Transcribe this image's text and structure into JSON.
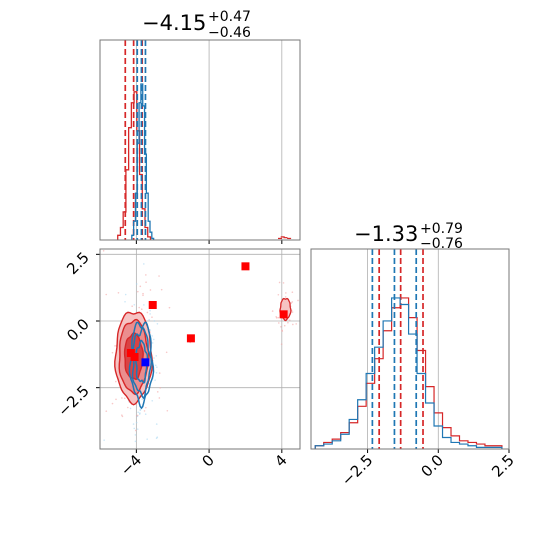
{
  "colors": {
    "red": "#d62728",
    "blue": "#1f77b4",
    "marker_red": "#ff0000",
    "marker_blue": "#0000ff",
    "grid": "#b0b0b0"
  },
  "titles": {
    "p1": {
      "main": "−4.15",
      "sup": "+0.47",
      "sub": "−0.46"
    },
    "p2": {
      "main": "−1.33",
      "sup": "+0.79",
      "sub": "−0.76"
    }
  },
  "chart_data": [
    {
      "type": "histogram",
      "panel": "marginal-param-1",
      "xlim": [
        -6,
        5
      ],
      "grid": true,
      "series": [
        {
          "color": "#d62728",
          "bins": [
            -4.95,
            -4.8,
            -4.65,
            -4.5,
            -4.35,
            -4.2,
            -4.05,
            -3.9,
            -3.75,
            -3.6,
            -3.45,
            -3.3
          ],
          "counts": [
            0.03,
            0.08,
            0.18,
            0.45,
            0.72,
            0.88,
            0.95,
            0.7,
            0.42,
            0.2,
            0.08,
            0.02
          ],
          "quantiles": [
            -4.61,
            -4.15,
            -3.68
          ]
        },
        {
          "color": "#1f77b4",
          "bins": [
            -4.2,
            -4.1,
            -4.0,
            -3.9,
            -3.8,
            -3.7,
            -3.6,
            -3.5,
            -3.4,
            -3.3,
            -3.2,
            -3.1
          ],
          "counts": [
            0.03,
            0.12,
            0.3,
            0.62,
            0.88,
            1.0,
            0.86,
            0.55,
            0.3,
            0.12,
            0.05,
            0.01
          ],
          "quantiles": [
            -3.95,
            -3.72,
            -3.5
          ]
        }
      ],
      "outliers": {
        "color": "#d62728",
        "x": [
          3.9,
          4.05,
          4.2,
          4.4
        ],
        "counts": [
          0.01,
          0.02,
          0.015,
          0.01
        ]
      }
    },
    {
      "type": "histogram",
      "panel": "marginal-param-2",
      "xlim": [
        -4.5,
        2.5
      ],
      "xticks": [
        "−2.5",
        "0.0",
        "2.5"
      ],
      "grid": true,
      "series": [
        {
          "color": "#d62728",
          "bins": [
            -4.2,
            -3.9,
            -3.6,
            -3.3,
            -3.0,
            -2.7,
            -2.4,
            -2.1,
            -1.8,
            -1.5,
            -1.2,
            -0.9,
            -0.6,
            -0.3,
            0.0,
            0.3,
            0.6,
            0.9,
            1.2,
            1.5,
            1.8,
            2.1
          ],
          "counts": [
            0.02,
            0.04,
            0.06,
            0.1,
            0.16,
            0.26,
            0.4,
            0.55,
            0.72,
            0.86,
            0.92,
            0.8,
            0.6,
            0.38,
            0.22,
            0.13,
            0.08,
            0.05,
            0.04,
            0.03,
            0.02,
            0.02
          ],
          "quantiles": [
            -2.09,
            -1.33,
            -0.54
          ]
        },
        {
          "color": "#1f77b4",
          "bins": [
            -4.2,
            -3.9,
            -3.6,
            -3.3,
            -3.0,
            -2.7,
            -2.4,
            -2.1,
            -1.8,
            -1.5,
            -1.2,
            -0.9,
            -0.6,
            -0.3,
            0.0,
            0.3,
            0.6,
            0.9,
            1.2,
            1.5,
            1.8,
            2.1
          ],
          "counts": [
            0.02,
            0.03,
            0.05,
            0.09,
            0.18,
            0.3,
            0.46,
            0.62,
            0.78,
            0.92,
            0.88,
            0.7,
            0.46,
            0.28,
            0.14,
            0.07,
            0.04,
            0.03,
            0.02,
            0.01,
            0.01,
            0.01
          ],
          "quantiles": [
            -2.33,
            -1.55,
            -0.78
          ]
        }
      ]
    },
    {
      "type": "scatter",
      "panel": "joint-param-1-param-2",
      "xlim": [
        -6,
        5
      ],
      "ylim": [
        -4.8,
        2.7
      ],
      "xticks": [
        "−4",
        "0",
        "4"
      ],
      "yticks": [
        "2.5",
        "0.0",
        "−2.5"
      ],
      "grid": true,
      "contours": [
        {
          "color": "#d62728",
          "center": [
            -4.15,
            -1.33
          ],
          "sigma": [
            0.5,
            0.85
          ],
          "levels": [
            1.0,
            1.6,
            2.0
          ]
        },
        {
          "color": "#1f77b4",
          "center": [
            -3.72,
            -1.55
          ],
          "sigma": [
            0.3,
            0.75
          ],
          "levels": [
            1.0,
            1.6,
            2.0
          ]
        }
      ],
      "secondary_mode": {
        "color": "#d62728",
        "center": [
          4.2,
          0.45
        ],
        "sigma": [
          0.18,
          0.25
        ]
      },
      "markers": [
        {
          "color": "#ff0000",
          "x": 2.0,
          "y": 2.05
        },
        {
          "color": "#ff0000",
          "x": -3.1,
          "y": 0.6
        },
        {
          "color": "#ff0000",
          "x": -1.0,
          "y": -0.65
        },
        {
          "color": "#ff0000",
          "x": 4.1,
          "y": 0.25
        },
        {
          "color": "#ff0000",
          "x": -4.3,
          "y": -1.2
        },
        {
          "color": "#ff0000",
          "x": -4.1,
          "y": -1.35
        },
        {
          "color": "#0000ff",
          "x": -3.5,
          "y": -1.55
        }
      ]
    }
  ]
}
